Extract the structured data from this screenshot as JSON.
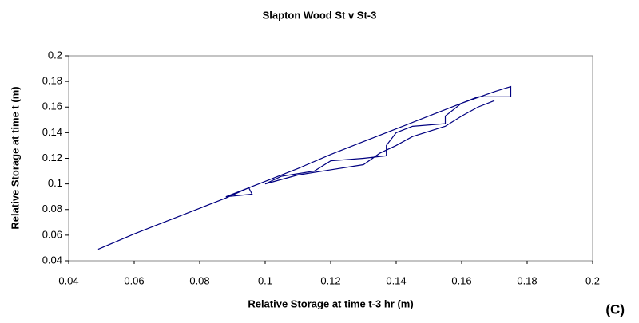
{
  "chart_data": {
    "type": "line",
    "title": "Slapton Wood St v St-3",
    "x_label": "Relative Storage at time t-3 hr (m)",
    "y_label": "Relative Storage at time t (m)",
    "annotation": "(C)",
    "xlim": [
      0.04,
      0.2
    ],
    "xticks": [
      0.04,
      0.06,
      0.08,
      0.1,
      0.12,
      0.14,
      0.16,
      0.18,
      0.2
    ],
    "ylim": [
      0.04,
      0.2
    ],
    "yticks": [
      0.04,
      0.06,
      0.08,
      0.1,
      0.12,
      0.14,
      0.16,
      0.18,
      0.2
    ],
    "grid": false,
    "color": "#000080",
    "x": [
      0.049,
      0.06,
      0.07,
      0.08,
      0.088,
      0.095,
      0.096,
      0.088,
      0.1,
      0.11,
      0.12,
      0.13,
      0.14,
      0.15,
      0.16,
      0.17,
      0.175,
      0.175,
      0.165,
      0.16,
      0.155,
      0.155,
      0.145,
      0.14,
      0.137,
      0.137,
      0.13,
      0.12,
      0.115,
      0.105,
      0.1,
      0.11,
      0.12,
      0.13,
      0.135,
      0.14,
      0.145,
      0.155,
      0.16,
      0.165,
      0.17
    ],
    "values": [
      0.049,
      0.061,
      0.071,
      0.081,
      0.089,
      0.097,
      0.092,
      0.09,
      0.102,
      0.112,
      0.123,
      0.133,
      0.143,
      0.153,
      0.163,
      0.172,
      0.176,
      0.168,
      0.168,
      0.163,
      0.153,
      0.147,
      0.145,
      0.14,
      0.13,
      0.122,
      0.12,
      0.118,
      0.11,
      0.106,
      0.1,
      0.107,
      0.111,
      0.115,
      0.124,
      0.13,
      0.137,
      0.145,
      0.153,
      0.16,
      0.165
    ]
  }
}
